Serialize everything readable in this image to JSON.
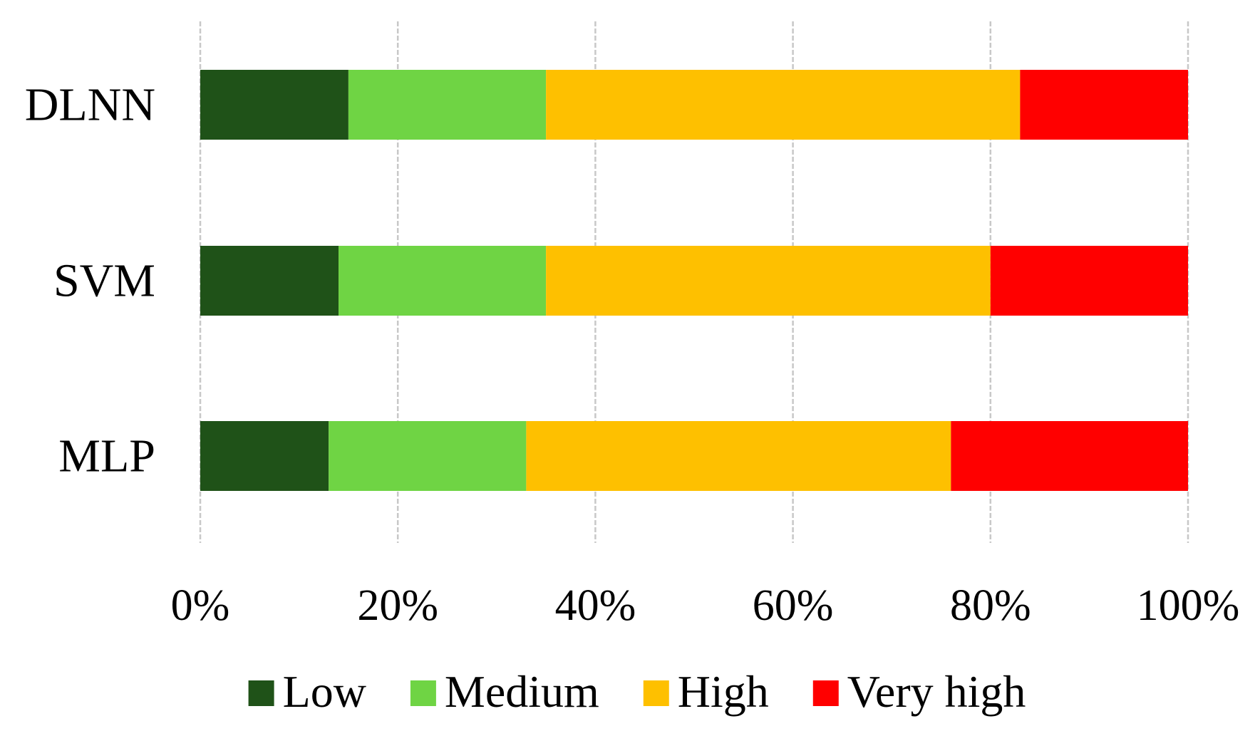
{
  "chart_data": {
    "type": "bar",
    "orientation": "horizontal",
    "stacked": "percent",
    "categories": [
      "DLNN",
      "SVM",
      "MLP"
    ],
    "series": [
      {
        "name": "Low",
        "color": "#1f5218",
        "values": [
          15,
          14,
          13
        ]
      },
      {
        "name": "Medium",
        "color": "#6fd444",
        "values": [
          20,
          21,
          20
        ]
      },
      {
        "name": "High",
        "color": "#fec000",
        "values": [
          48,
          45,
          43
        ]
      },
      {
        "name": "Very high",
        "color": "#ff0000",
        "values": [
          17,
          20,
          24
        ]
      }
    ],
    "xlim": [
      0,
      100
    ],
    "xticks": [
      0,
      20,
      40,
      60,
      80,
      100
    ],
    "xtick_labels": [
      "0%",
      "20%",
      "40%",
      "60%",
      "80%",
      "100%"
    ],
    "grid": true,
    "legend_position": "bottom"
  }
}
